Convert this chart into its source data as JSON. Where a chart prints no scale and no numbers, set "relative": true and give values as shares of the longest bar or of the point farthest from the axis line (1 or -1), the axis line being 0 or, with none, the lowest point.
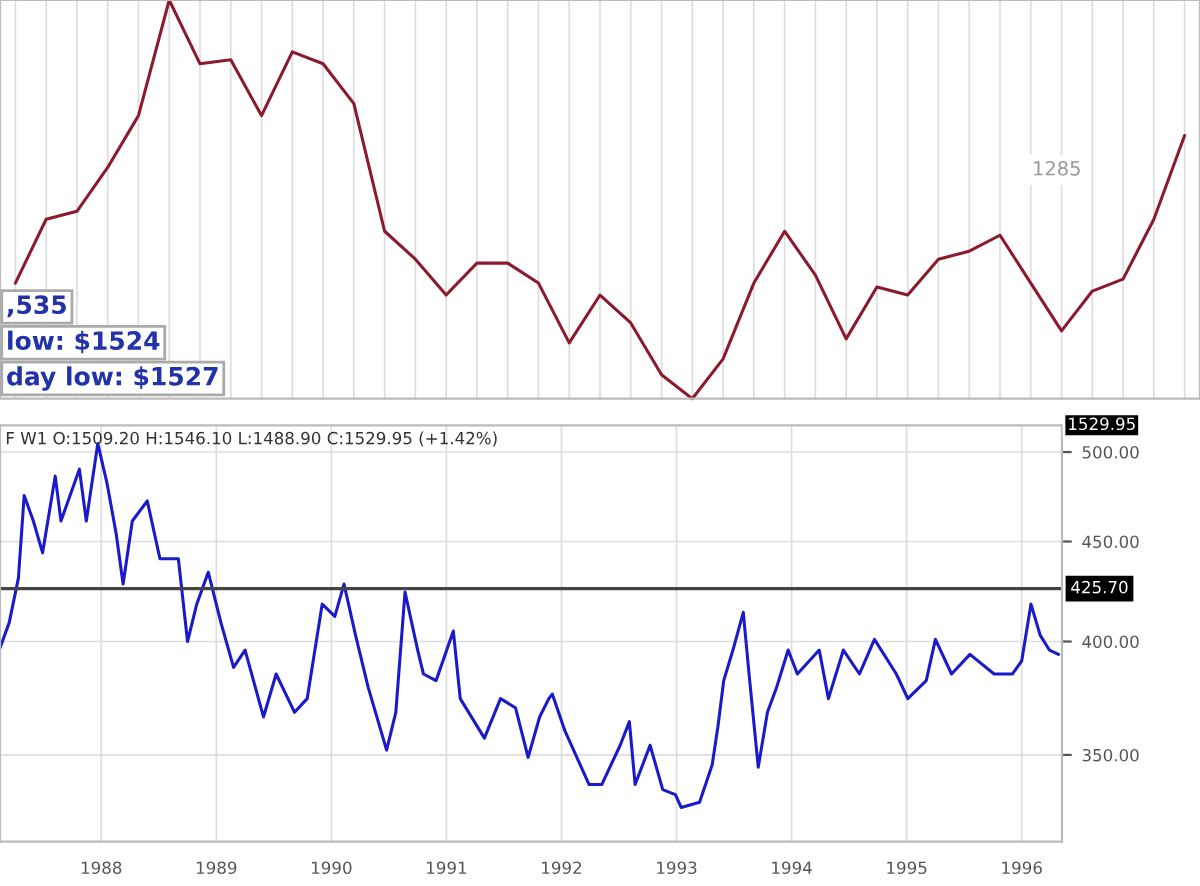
{
  "chart_data": [
    {
      "type": "line",
      "relative": true,
      "grid": "x",
      "categories": [
        null,
        null,
        null,
        null,
        null,
        null,
        null,
        null,
        null,
        null,
        null,
        null,
        null,
        null,
        null,
        null,
        null,
        null,
        null,
        null,
        null,
        null,
        null,
        null,
        null,
        null,
        null,
        null,
        null,
        null,
        null,
        null,
        null,
        null,
        null,
        null,
        null,
        null,
        null
      ],
      "series": [
        {
          "color": "#8b1a2e",
          "values": [
            0.29,
            0.45,
            0.47,
            0.58,
            0.71,
            1,
            0.84,
            0.85,
            0.71,
            0.87,
            0.84,
            0.74,
            0.42,
            0.35,
            0.26,
            0.34,
            0.34,
            0.29,
            0.14,
            0.26,
            0.19,
            0.06,
            0,
            0.1,
            0.29,
            0.42,
            0.31,
            0.15,
            0.28,
            0.26,
            0.35,
            0.37,
            0.41,
            0.29,
            0.17,
            0.27,
            0.3,
            0.45,
            0.66
          ]
        }
      ],
      "annotations": [
        ",535",
        "low: $1524",
        "day low: $1527",
        "1285"
      ]
    },
    {
      "type": "line",
      "log": "y",
      "grid": true,
      "ylim": [
        316,
        516
      ],
      "xlim": [
        1987.12,
        1996.35
      ],
      "xticks": [
        1988,
        1989,
        1990,
        1991,
        1992,
        1993,
        1994,
        1995,
        1996
      ],
      "yticks": [
        {
          "value": 350,
          "label": "350.00"
        },
        {
          "value": 400,
          "label": "400.00"
        },
        {
          "value": 450,
          "label": "450.00"
        },
        {
          "value": 500,
          "label": "500.00"
        }
      ],
      "ref_lines": [
        {
          "axis": "y",
          "value": 425.7,
          "label": "425.70",
          "color": "#444444"
        }
      ],
      "series": [
        {
          "color": "#1a1acc",
          "x": [
            1987.12,
            1987.2,
            1987.28,
            1987.33,
            1987.41,
            1987.49,
            1987.6,
            1987.65,
            1987.81,
            1987.87,
            1987.97,
            1988.05,
            1988.13,
            1988.19,
            1988.27,
            1988.4,
            1988.51,
            1988.67,
            1988.75,
            1988.83,
            1988.93,
            1989.04,
            1989.15,
            1989.25,
            1989.41,
            1989.52,
            1989.68,
            1989.79,
            1989.92,
            1990.03,
            1990.11,
            1990.21,
            1990.32,
            1990.48,
            1990.56,
            1990.64,
            1990.75,
            1990.8,
            1990.91,
            1991.06,
            1991.12,
            1991.33,
            1991.47,
            1991.6,
            1991.71,
            1991.81,
            1991.89,
            1991.92,
            1992.03,
            1992.24,
            1992.35,
            1992.51,
            1992.59,
            1992.64,
            1992.77,
            1992.88,
            1992.99,
            1993.04,
            1993.2,
            1993.31,
            1993.36,
            1993.41,
            1993.49,
            1993.58,
            1993.63,
            1993.71,
            1993.79,
            1993.87,
            1993.97,
            1994.05,
            1994.24,
            1994.32,
            1994.45,
            1994.59,
            1994.72,
            1994.91,
            1995.01,
            1995.17,
            1995.25,
            1995.39,
            1995.55,
            1995.76,
            1995.92,
            1996.0,
            1996.08,
            1996.16,
            1996.24,
            1996.32
          ],
          "values": [
            397,
            409,
            431,
            475,
            461,
            444,
            486,
            461,
            490,
            461,
            505,
            482,
            454,
            428,
            461,
            472,
            441,
            441,
            400,
            418,
            434,
            409,
            388,
            396,
            366,
            385,
            368,
            374,
            418,
            412,
            428,
            403,
            379,
            352,
            368,
            424,
            396,
            385,
            382,
            405,
            374,
            357,
            374,
            370,
            349,
            366,
            374,
            376,
            360,
            338,
            338,
            354,
            364,
            338,
            354,
            336,
            334,
            329,
            331,
            346,
            362,
            382,
            396,
            414,
            385,
            345,
            368,
            379,
            396,
            385,
            396,
            374,
            396,
            385,
            401,
            385,
            374,
            382,
            401,
            385,
            394,
            385,
            385,
            391,
            418,
            403,
            396,
            394
          ]
        }
      ],
      "annotations": [
        "F W1 O:1509.20 H:1546.10 L:1488.90 C:1529.95 (+1.42%)",
        "1529.95"
      ]
    }
  ]
}
